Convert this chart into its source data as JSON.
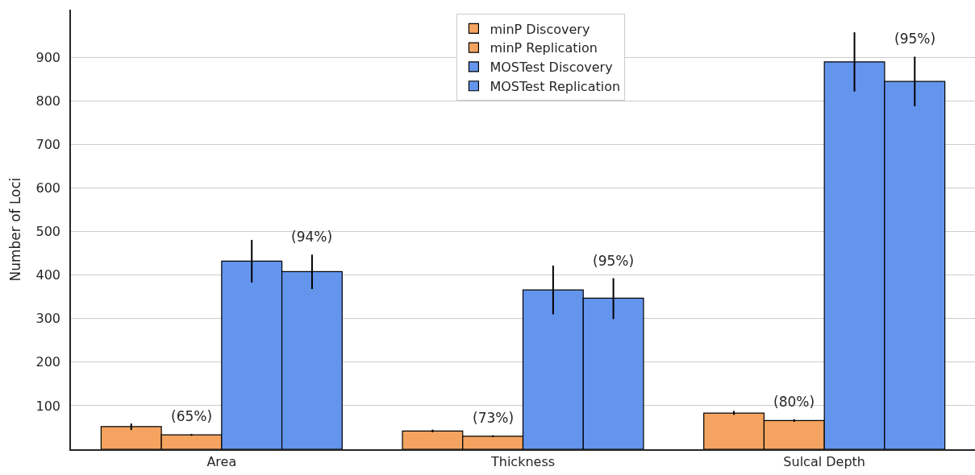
{
  "chart_data": {
    "type": "bar",
    "ylabel": "Number of Loci",
    "categories": [
      "Area",
      "Thickness",
      "Sulcal Depth"
    ],
    "series": [
      {
        "name": "minP Discovery",
        "color": "#f4a460",
        "values": [
          52,
          42,
          83
        ],
        "errors": [
          [
            44,
            59
          ],
          [
            39,
            45
          ],
          [
            79,
            88
          ]
        ]
      },
      {
        "name": "minP Replication",
        "color": "#f4a460",
        "values": [
          33,
          30,
          66
        ],
        "errors": [
          [
            31,
            35
          ],
          [
            28,
            32
          ],
          [
            63,
            69
          ]
        ]
      },
      {
        "name": "MOSTest Discovery",
        "color": "#6495ed",
        "values": [
          432,
          366,
          890
        ],
        "errors": [
          [
            383,
            481
          ],
          [
            310,
            422
          ],
          [
            822,
            958
          ]
        ]
      },
      {
        "name": "MOSTest Replication",
        "color": "#6495ed",
        "values": [
          408,
          347,
          845
        ],
        "errors": [
          [
            368,
            447
          ],
          [
            299,
            393
          ],
          [
            788,
            902
          ]
        ]
      }
    ],
    "annotations": [
      "(65%)",
      "(94%)",
      "(73%)",
      "(95%)",
      "(80%)",
      "(95%)"
    ],
    "ylim": [
      0,
      1010
    ],
    "yticks": [
      100,
      200,
      300,
      400,
      500,
      600,
      700,
      800,
      900
    ],
    "grid": "y",
    "legend": "top"
  }
}
